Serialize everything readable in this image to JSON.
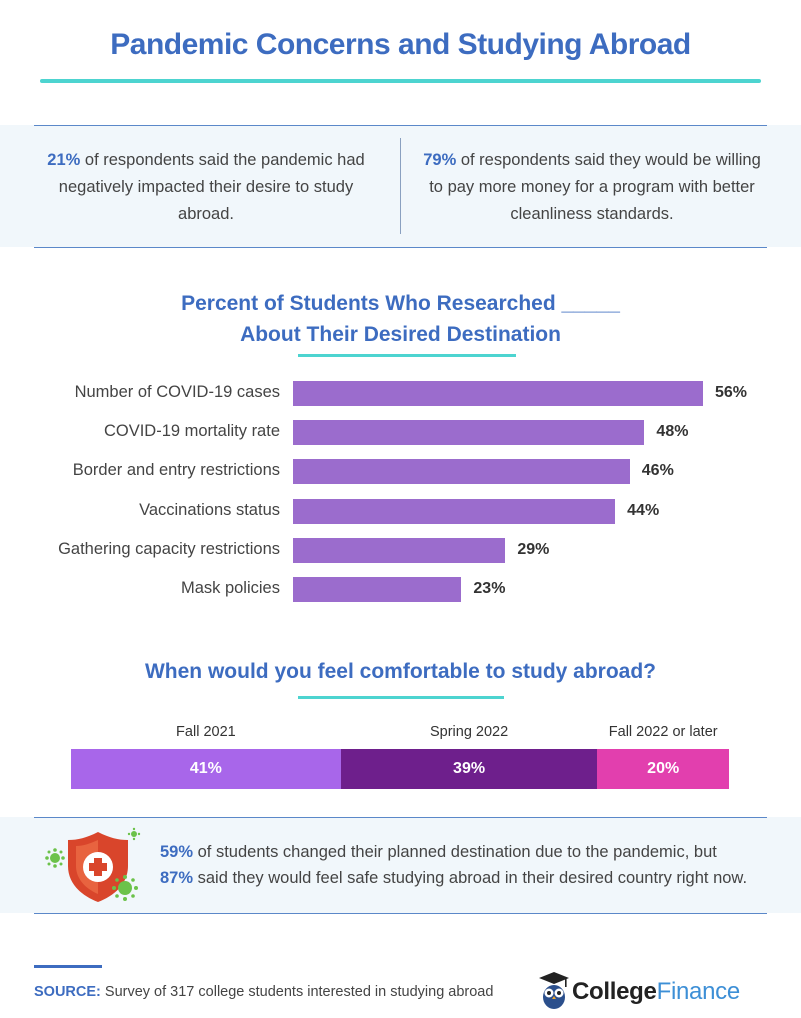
{
  "title": "Pandemic Concerns and Studying Abroad",
  "stats": {
    "left": {
      "highlight": "21%",
      "text": " of respondents said the pandemic had negatively impacted their desire to study abroad."
    },
    "right": {
      "highlight": "79%",
      "text": " of respondents said they would be willing to pay more money for a program with better cleanliness standards."
    }
  },
  "bar_chart_title_line1": "Percent of Students Who Researched _____",
  "bar_chart_title_line2": "About Their Desired Destination",
  "question_title": "When would you feel comfortable to study abroad?",
  "bottom_note": {
    "highlight1": "59%",
    "text1": " of students changed their planned destination due to the pandemic, but",
    "highlight2": "87%",
    "text2": " said they would feel safe studying abroad in their desired country right now."
  },
  "source": {
    "label": "SOURCE:",
    "text": " Survey of 317 college students interested in studying abroad"
  },
  "logo": {
    "part1": "College",
    "part2": "Finance"
  },
  "colors": {
    "heading": "#3d6cc0",
    "accent_rule": "#4dd4d0",
    "bar": "#9b6ccd",
    "seg1": "#a866ea",
    "seg2": "#6e1f8c",
    "seg3": "#e23fae",
    "shield": "#d9452b",
    "virus": "#6cc24a"
  },
  "icons": [
    "shield-cross-icon",
    "virus-icon",
    "owl-logo-icon"
  ],
  "chart_data": [
    {
      "type": "bar",
      "orientation": "horizontal",
      "title": "Percent of Students Who Researched _____ About Their Desired Destination",
      "categories": [
        "Number of COVID-19 cases",
        "COVID-19 mortality rate",
        "Border and entry restrictions",
        "Vaccinations status",
        "Gathering capacity restrictions",
        "Mask policies"
      ],
      "values": [
        56,
        48,
        46,
        44,
        29,
        23
      ],
      "value_labels": [
        "56%",
        "48%",
        "46%",
        "44%",
        "29%",
        "23%"
      ],
      "unit": "%",
      "grid": false
    },
    {
      "type": "bar",
      "orientation": "stacked-horizontal",
      "title": "When would you feel comfortable to study abroad?",
      "categories": [
        "Fall 2021",
        "Spring 2022",
        "Fall 2022 or later"
      ],
      "values": [
        41,
        39,
        20
      ],
      "value_labels": [
        "41%",
        "39%",
        "20%"
      ],
      "unit": "%"
    }
  ]
}
